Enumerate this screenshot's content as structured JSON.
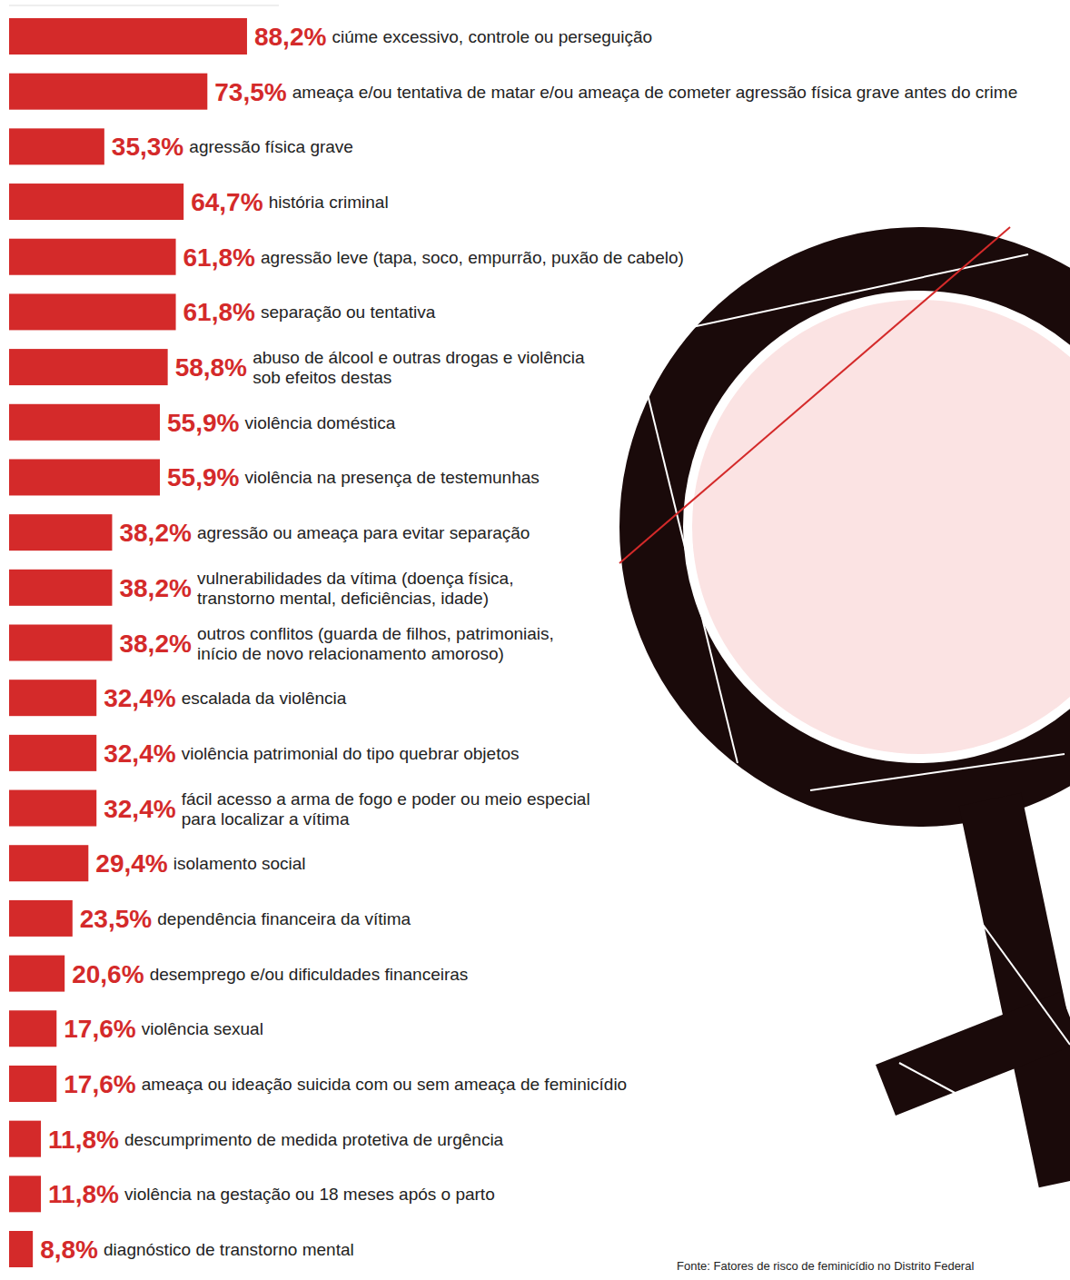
{
  "chart_data": {
    "type": "bar",
    "orientation": "horizontal",
    "data_labels": true,
    "tick_labels": false,
    "grid": false,
    "color": "#d42a2a",
    "xlim": [
      0,
      100
    ],
    "categories": [
      "ciúme excessivo, controle ou perseguição",
      "ameaça e/ou tentativa de matar e/ou ameaça de cometer agressão física grave antes do crime",
      "agressão física grave",
      "história criminal",
      "agressão leve (tapa, soco, empurrão, puxão de cabelo)",
      "separação ou tentativa",
      "abuso de álcool e outras drogas e violência\nsob efeitos destas",
      "violência doméstica",
      "violência na presença de testemunhas",
      "agressão ou ameaça para evitar separação",
      "vulnerabilidades da vítima (doença física,\ntranstorno mental, deficiências, idade)",
      "outros conflitos (guarda de filhos, patrimoniais,\ninício de novo relacionamento amoroso)",
      "escalada da violência",
      "violência patrimonial do tipo quebrar objetos",
      "fácil acesso a arma de fogo e poder ou meio especial\npara localizar a vítima",
      "isolamento social",
      "dependência financeira da vítima",
      "desemprego e/ou dificuldades financeiras",
      "violência sexual",
      "ameaça ou ideação suicida com ou sem ameaça de feminicídio",
      "descumprimento de medida protetiva de urgência",
      "violência na gestação ou 18 meses após o parto",
      "diagnóstico de transtorno mental"
    ],
    "values": [
      88.2,
      73.5,
      35.3,
      64.7,
      61.8,
      61.8,
      58.8,
      55.9,
      55.9,
      38.2,
      38.2,
      38.2,
      32.4,
      32.4,
      32.4,
      29.4,
      23.5,
      20.6,
      17.6,
      17.6,
      11.8,
      11.8,
      8.8
    ],
    "value_labels": [
      "88,2%",
      "73,5%",
      "35,3%",
      "64,7%",
      "61,8%",
      "61,8%",
      "58,8%",
      "55,9%",
      "55,9%",
      "38,2%",
      "38,2%",
      "38,2%",
      "32,4%",
      "32,4%",
      "32,4%",
      "29,4%",
      "23,5%",
      "20,6%",
      "17,6%",
      "17,6%",
      "11,8%",
      "11,8%",
      "8,8%"
    ],
    "source": "Fonte: Fatores de risco de feminicídio no Distrito Federal"
  }
}
